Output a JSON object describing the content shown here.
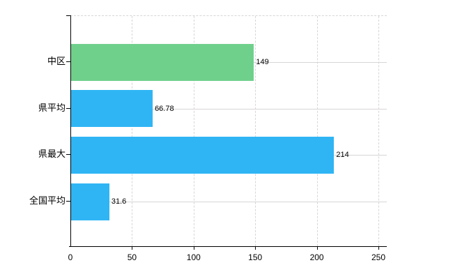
{
  "chart_data": {
    "type": "bar",
    "orientation": "horizontal",
    "title": "",
    "categories": [
      "中区",
      "県平均",
      "県最大",
      "全国平均"
    ],
    "values": [
      149,
      66.78,
      214,
      31.6
    ],
    "value_labels": [
      "149",
      "66.78",
      "214",
      "31.6"
    ],
    "bar_colors": [
      "#6fd08c",
      "#2fb5f4",
      "#2fb5f4",
      "#2fb5f4"
    ],
    "xlim": [
      0,
      250
    ],
    "x_ticks": [
      0,
      50,
      100,
      150,
      200,
      250
    ],
    "x_tick_labels": [
      "0",
      "50",
      "100",
      "150",
      "200",
      "250"
    ],
    "grid": true,
    "legend": "none",
    "background_color": "#ffffff",
    "axis_color": "#000000",
    "gridline_color": "#d8d5d5",
    "text_color": "#000000"
  }
}
